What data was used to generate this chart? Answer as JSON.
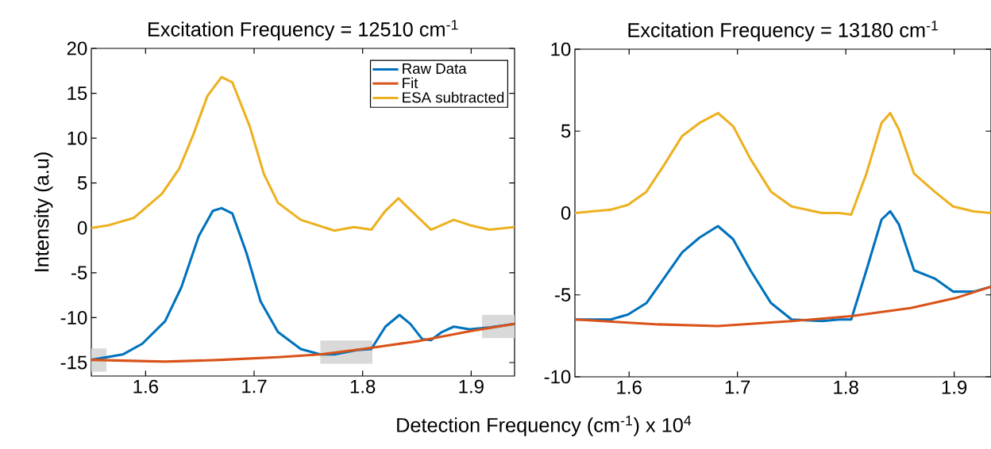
{
  "chart_data": [
    {
      "type": "line",
      "title": "Excitation Frequency = 12510 cm$^{-1}$",
      "xlabel": "Detection Frequency (cm$^{-1}$) x 10$^{4}$",
      "ylabel": "Intensity (a.u)",
      "xlim": [
        1.55,
        1.94
      ],
      "xticks": [
        1.6,
        1.7,
        1.8,
        1.9
      ],
      "ylim": [
        -16.5,
        20
      ],
      "yticks": [
        -15,
        -10,
        -5,
        0,
        5,
        10,
        15,
        20
      ],
      "legend": "top right",
      "grid": false,
      "marker": "none",
      "line_style": "solid",
      "bands": [
        {
          "axis": "x",
          "from": 1.55,
          "to": 1.564,
          "color": "#d9d9d9"
        },
        {
          "axis": "x",
          "from": 1.761,
          "to": 1.809,
          "color": "#d9d9d9"
        },
        {
          "axis": "x",
          "from": 1.91,
          "to": 1.94,
          "color": "#d9d9d9"
        }
      ],
      "series": [
        {
          "name": "Raw Data",
          "color": "#0072bd",
          "x": [
            1.55,
            1.579,
            1.597,
            1.618,
            1.633,
            1.649,
            1.662,
            1.67,
            1.68,
            1.693,
            1.706,
            1.722,
            1.743,
            1.761,
            1.774,
            1.795,
            1.808,
            1.821,
            1.834,
            1.844,
            1.855,
            1.863,
            1.873,
            1.884,
            1.899,
            1.917,
            1.94
          ],
          "values": [
            -14.7,
            -14.1,
            -12.9,
            -10.4,
            -6.6,
            -0.9,
            1.9,
            2.2,
            1.6,
            -2.8,
            -8.2,
            -11.6,
            -13.5,
            -14.1,
            -14.1,
            -13.6,
            -13.5,
            -11.0,
            -9.7,
            -10.7,
            -12.4,
            -12.5,
            -11.6,
            -11.0,
            -11.3,
            -11.1,
            -10.7
          ]
        },
        {
          "name": "Fit",
          "color": "#d95319",
          "x": [
            1.55,
            1.618,
            1.67,
            1.722,
            1.761,
            1.8,
            1.852,
            1.899,
            1.94
          ],
          "values": [
            -14.7,
            -14.9,
            -14.7,
            -14.4,
            -14.1,
            -13.5,
            -12.6,
            -11.5,
            -10.7
          ]
        },
        {
          "name": "ESA subtracted",
          "color": "#edb120",
          "x": [
            1.55,
            1.566,
            1.589,
            1.615,
            1.631,
            1.644,
            1.657,
            1.67,
            1.68,
            1.696,
            1.709,
            1.722,
            1.743,
            1.774,
            1.792,
            1.808,
            1.821,
            1.833,
            1.844,
            1.863,
            1.884,
            1.899,
            1.917,
            1.94
          ],
          "values": [
            0,
            0.3,
            1.1,
            3.8,
            6.6,
            10.4,
            14.7,
            16.8,
            16.2,
            11.3,
            6.0,
            2.8,
            0.9,
            -0.3,
            0.1,
            -0.2,
            1.9,
            3.3,
            2.0,
            -0.2,
            0.9,
            0.3,
            -0.2,
            0.1
          ]
        }
      ]
    },
    {
      "type": "line",
      "title": "Excitation Frequency = 13180 cm$^{-1}$",
      "xlim": [
        1.55,
        1.934
      ],
      "xticks": [
        1.6,
        1.7,
        1.8,
        1.9
      ],
      "ylim": [
        -10,
        10
      ],
      "yticks": [
        -10,
        -5,
        0,
        5,
        10
      ],
      "legend": false,
      "grid": false,
      "marker": "none",
      "line_style": "solid",
      "series": [
        {
          "color": "#0072bd",
          "x": [
            1.55,
            1.583,
            1.599,
            1.616,
            1.632,
            1.649,
            1.665,
            1.682,
            1.696,
            1.712,
            1.731,
            1.75,
            1.778,
            1.794,
            1.805,
            1.819,
            1.833,
            1.841,
            1.849,
            1.863,
            1.882,
            1.899,
            1.918,
            1.934
          ],
          "values": [
            -6.5,
            -6.5,
            -6.2,
            -5.5,
            -4.0,
            -2.4,
            -1.5,
            -0.8,
            -1.6,
            -3.5,
            -5.5,
            -6.5,
            -6.6,
            -6.5,
            -6.5,
            -3.5,
            -0.4,
            0.1,
            -0.7,
            -3.5,
            -4.0,
            -4.8,
            -4.8,
            -4.5
          ]
        },
        {
          "color": "#d95319",
          "x": [
            1.55,
            1.627,
            1.682,
            1.75,
            1.805,
            1.86,
            1.901,
            1.934
          ],
          "values": [
            -6.5,
            -6.8,
            -6.9,
            -6.6,
            -6.3,
            -5.8,
            -5.2,
            -4.5
          ]
        },
        {
          "color": "#edb120",
          "x": [
            1.55,
            1.583,
            1.599,
            1.616,
            1.632,
            1.649,
            1.665,
            1.682,
            1.696,
            1.712,
            1.731,
            1.75,
            1.778,
            1.794,
            1.805,
            1.819,
            1.833,
            1.841,
            1.849,
            1.863,
            1.882,
            1.899,
            1.918,
            1.934
          ],
          "values": [
            0,
            0.2,
            0.5,
            1.3,
            2.9,
            4.7,
            5.5,
            6.1,
            5.3,
            3.3,
            1.3,
            0.4,
            0,
            0,
            -0.1,
            2.4,
            5.5,
            6.1,
            5.1,
            2.4,
            1.3,
            0.4,
            0.1,
            0
          ]
        }
      ]
    }
  ]
}
